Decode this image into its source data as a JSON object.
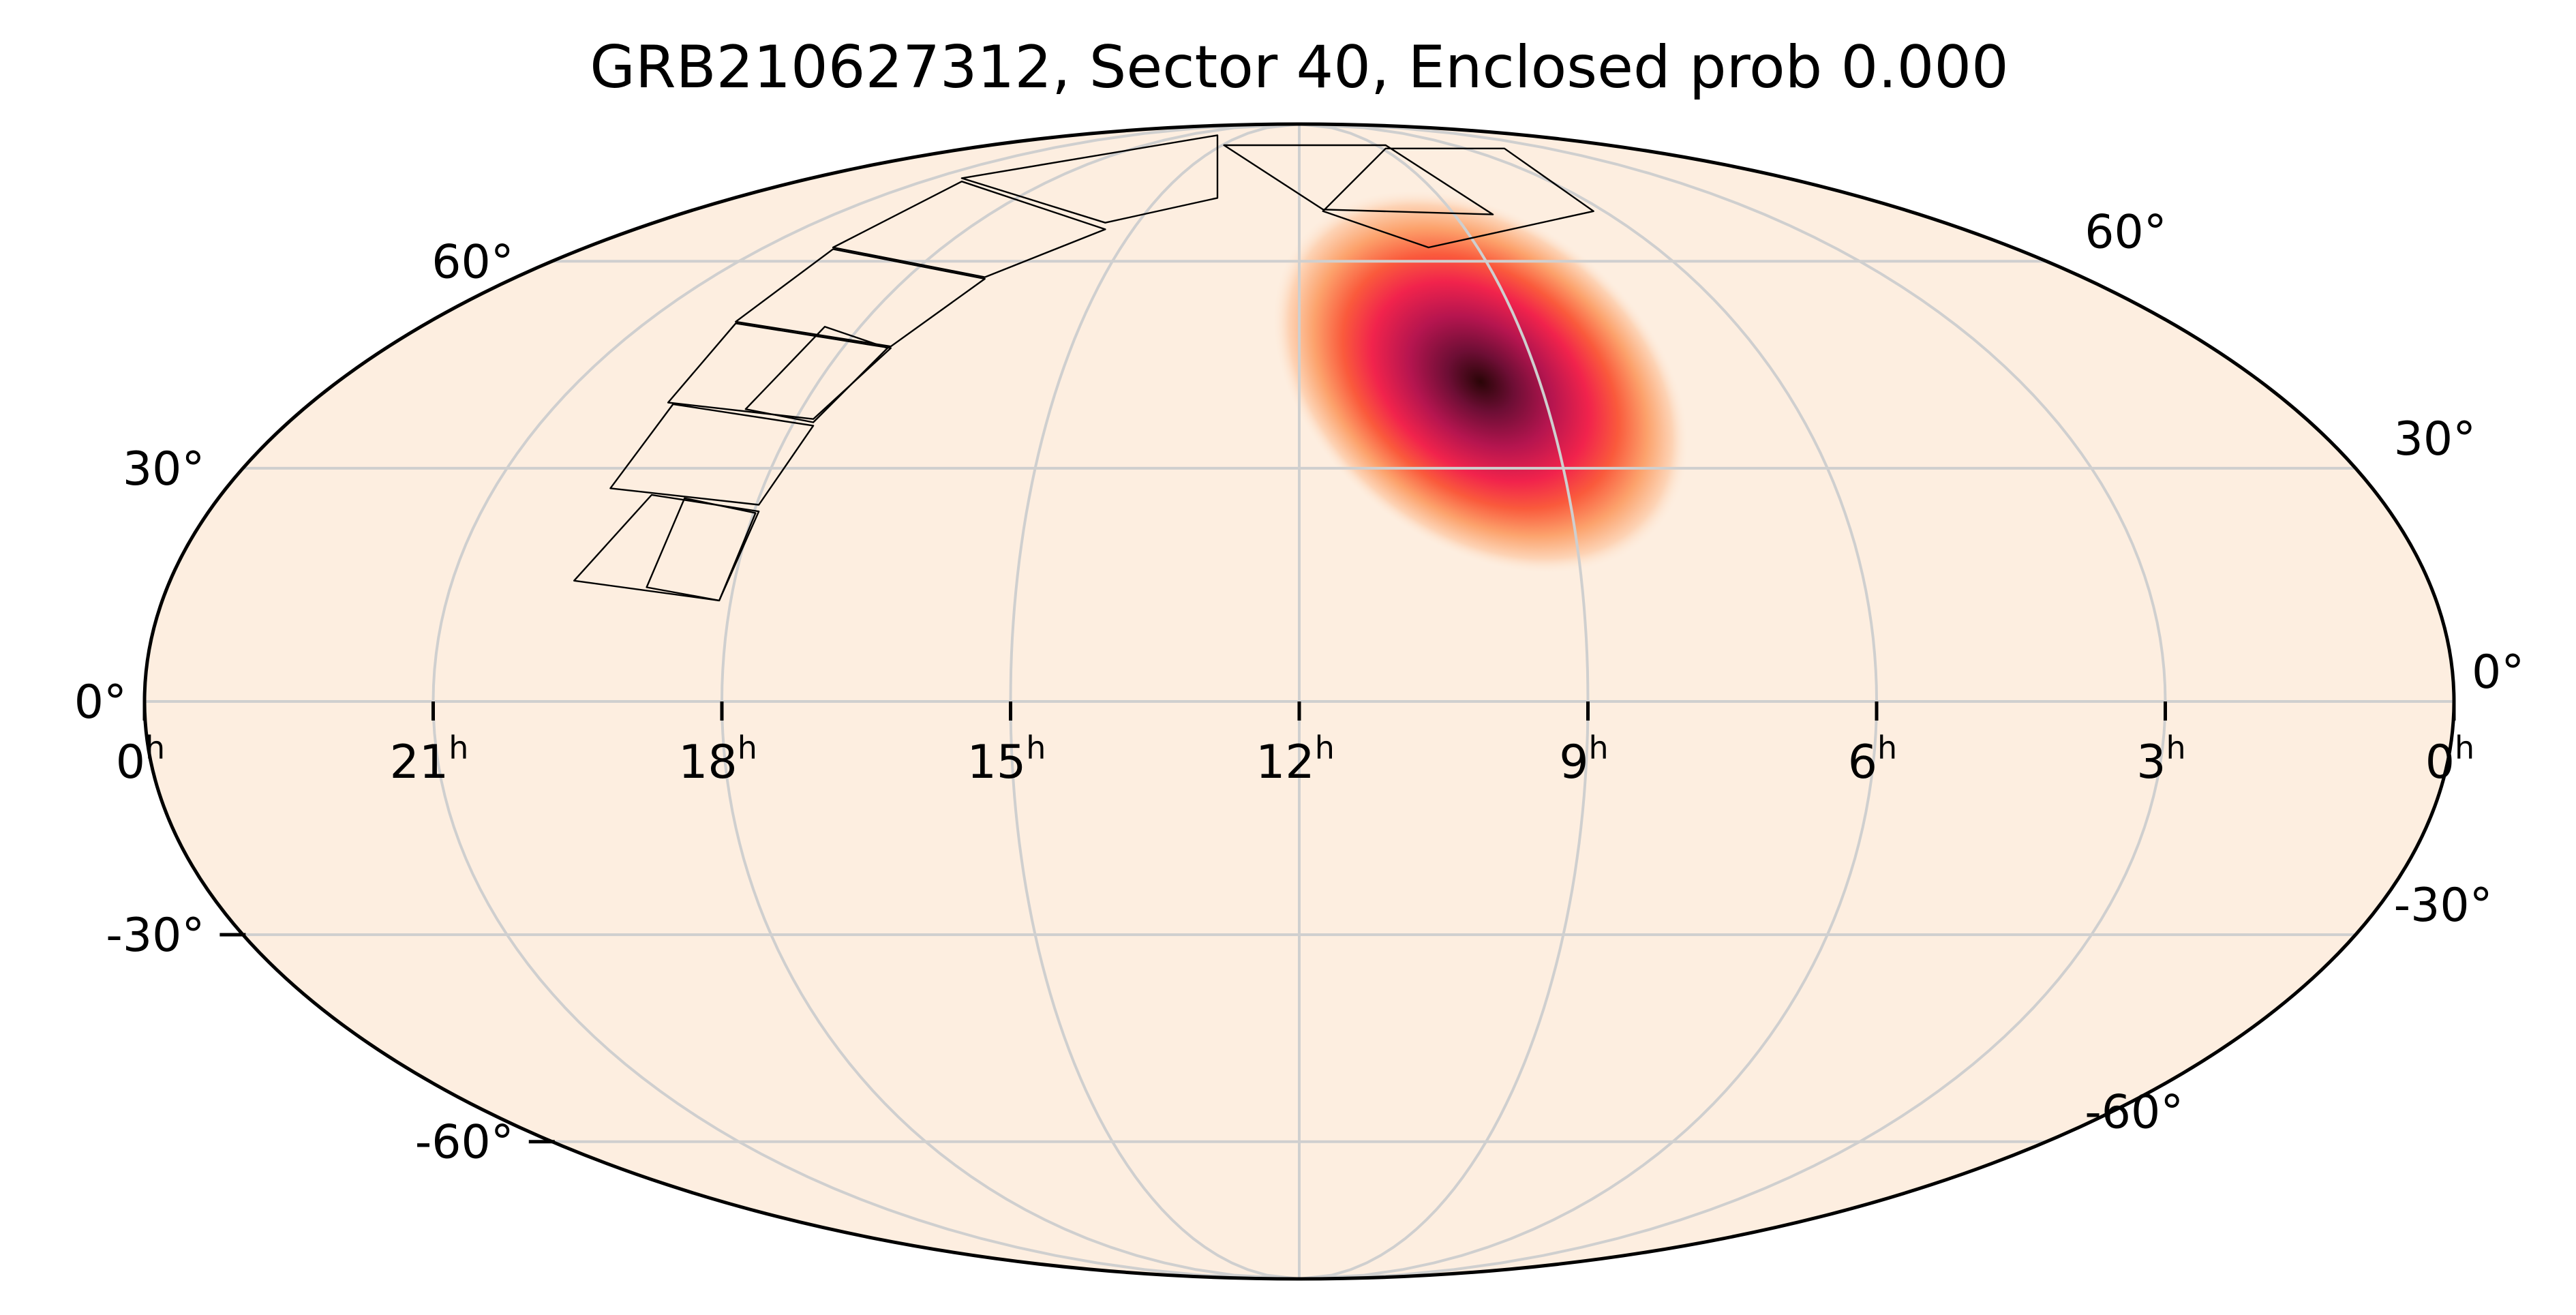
{
  "title": "GRB210627312, Sector 40, Enclosed prob 0.000",
  "map": {
    "projection": "mollweide",
    "background_color": "#fdeee0",
    "colormap": "magma_r",
    "ra_axis_reversed": true,
    "grid": true,
    "probability_peak": {
      "ra_hours": 9.86,
      "dec_deg": 38.5
    },
    "ra_tick_labels": [
      {
        "ra": 0,
        "label": "0",
        "sup": "h",
        "side": "left"
      },
      {
        "ra": 21,
        "label": "21",
        "sup": "h"
      },
      {
        "ra": 18,
        "label": "18",
        "sup": "h"
      },
      {
        "ra": 15,
        "label": "15",
        "sup": "h"
      },
      {
        "ra": 12,
        "label": "12",
        "sup": "h"
      },
      {
        "ra": 9,
        "label": "9",
        "sup": "h"
      },
      {
        "ra": 6,
        "label": "6",
        "sup": "h"
      },
      {
        "ra": 3,
        "label": "3",
        "sup": "h"
      },
      {
        "ra": 0,
        "label": "0",
        "sup": "h",
        "side": "right"
      }
    ],
    "dec_tick_labels": [
      {
        "dec": 60,
        "left": "60°",
        "right": "60°"
      },
      {
        "dec": 30,
        "left": "30°",
        "right": "30°"
      },
      {
        "dec": 0,
        "left": "0°",
        "right": "0°"
      },
      {
        "dec": -30,
        "left": "-30°",
        "right": "-30°"
      },
      {
        "dec": -60,
        "left": "-60°",
        "right": "-60°"
      }
    ]
  }
}
